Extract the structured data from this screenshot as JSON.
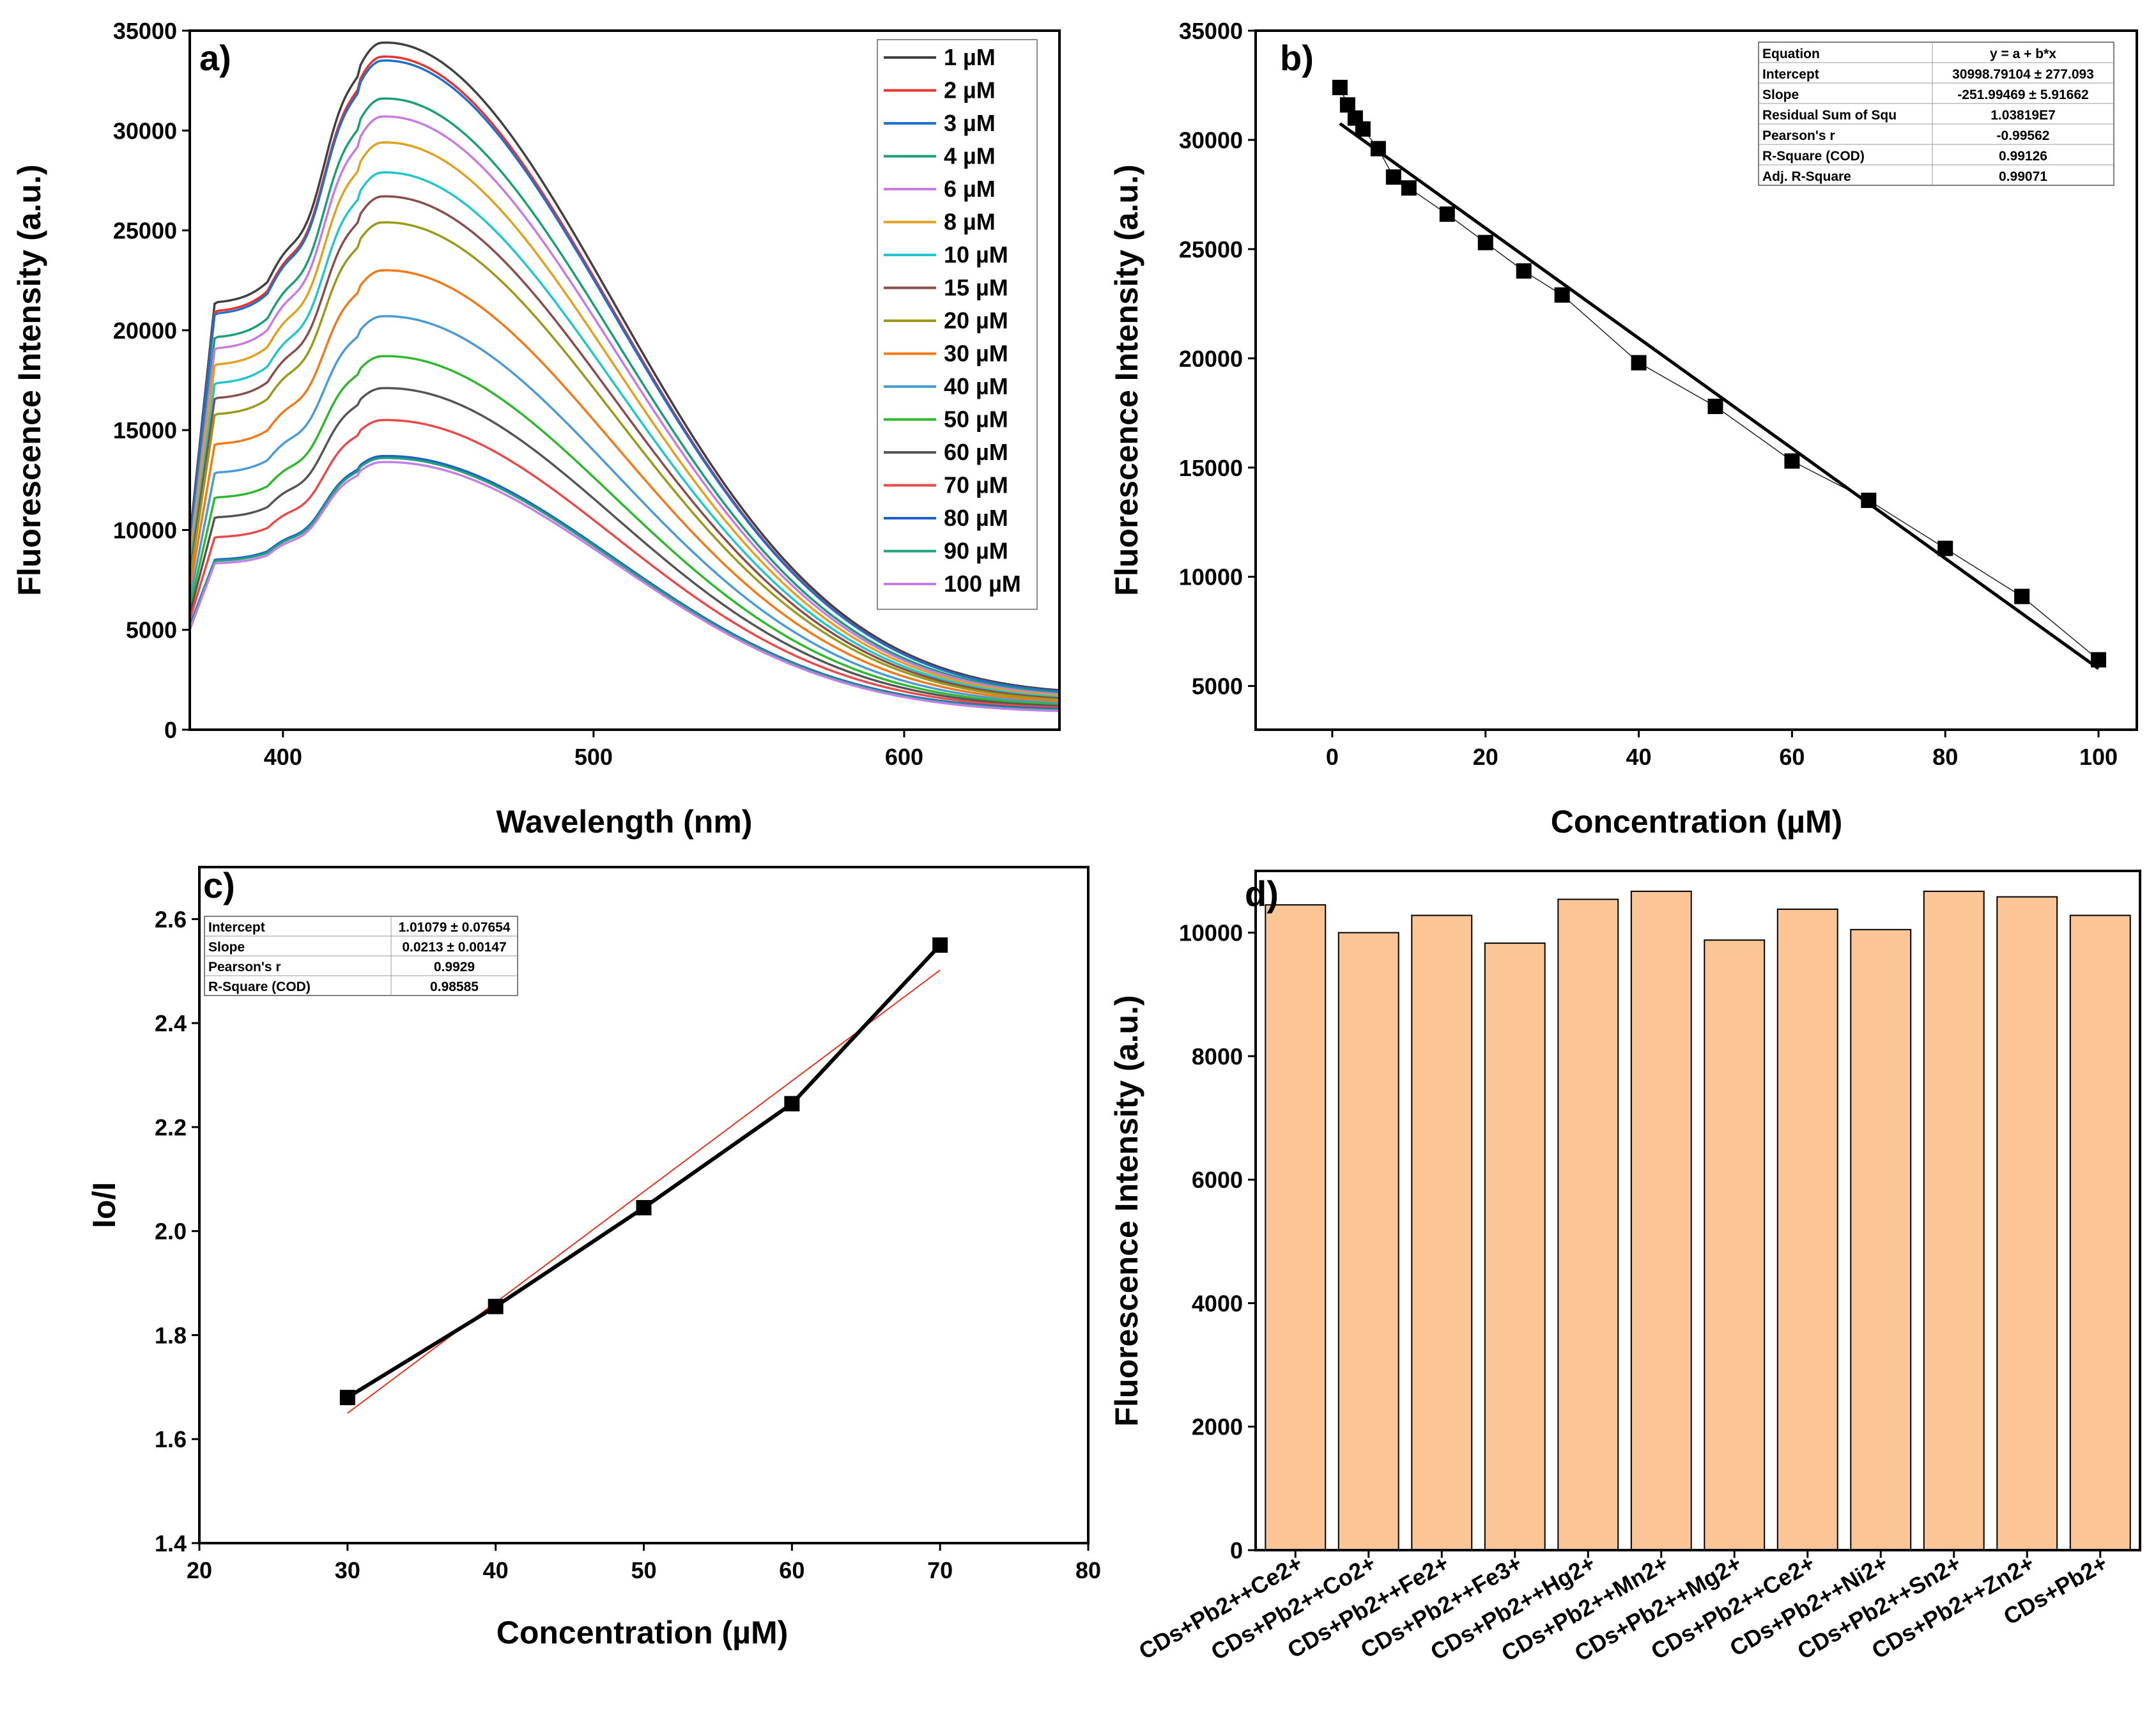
{
  "chart_data": [
    {
      "panel": "a)",
      "type": "line",
      "xlabel": "Wavelength (nm)",
      "ylabel": "Fluorescence Intensity (a.u.)",
      "xlim": [
        370,
        650
      ],
      "ylim": [
        0,
        35000
      ],
      "xticks": [
        400,
        500,
        600
      ],
      "yticks": [
        0,
        5000,
        10000,
        15000,
        20000,
        25000,
        30000,
        35000
      ],
      "peak_wavelength": 432,
      "series": [
        {
          "name": "1 µM",
          "color": "#404040",
          "peak": 34400,
          "start": 9600,
          "end": 1500
        },
        {
          "name": "2 µM",
          "color": "#e8322e",
          "peak": 33700,
          "start": 9400,
          "end": 1450
        },
        {
          "name": "3 µM",
          "color": "#1f6fd1",
          "peak": 33500,
          "start": 9300,
          "end": 1450
        },
        {
          "name": "4 µM",
          "color": "#1a9e75",
          "peak": 31600,
          "start": 8900,
          "end": 1400
        },
        {
          "name": "6 µM",
          "color": "#c77be0",
          "peak": 30700,
          "start": 8700,
          "end": 1350
        },
        {
          "name": "8 µM",
          "color": "#e0a020",
          "peak": 29400,
          "start": 8400,
          "end": 1300
        },
        {
          "name": "10 µM",
          "color": "#1fc6cc",
          "peak": 27900,
          "start": 8100,
          "end": 1250
        },
        {
          "name": "15 µM",
          "color": "#8b4c4c",
          "peak": 26700,
          "start": 7800,
          "end": 1200
        },
        {
          "name": "20 µM",
          "color": "#9a9a1a",
          "peak": 25400,
          "start": 7500,
          "end": 1150
        },
        {
          "name": "30 µM",
          "color": "#f07a1a",
          "peak": 23000,
          "start": 7000,
          "end": 1100
        },
        {
          "name": "40 µM",
          "color": "#4a9ad4",
          "peak": 20700,
          "start": 6500,
          "end": 1050
        },
        {
          "name": "50 µM",
          "color": "#2eb82e",
          "peak": 18700,
          "start": 6100,
          "end": 1000
        },
        {
          "name": "60 µM",
          "color": "#555555",
          "peak": 17100,
          "start": 5800,
          "end": 950
        },
        {
          "name": "70 µM",
          "color": "#e84a4a",
          "peak": 15500,
          "start": 5500,
          "end": 900
        },
        {
          "name": "80 µM",
          "color": "#1f5fc8",
          "peak": 13700,
          "start": 5200,
          "end": 850
        },
        {
          "name": "90 µM",
          "color": "#22a080",
          "peak": 13600,
          "start": 5100,
          "end": 800
        },
        {
          "name": "100 µM",
          "color": "#c080e8",
          "peak": 13400,
          "start": 5000,
          "end": 750
        }
      ]
    },
    {
      "panel": "b)",
      "type": "scatter",
      "xlabel": "Concentration (µM)",
      "ylabel": "Fluorescence Intensity (a.u.)",
      "xlim": [
        -10,
        105
      ],
      "ylim": [
        3000,
        35000
      ],
      "xticks": [
        0,
        20,
        40,
        60,
        80,
        100
      ],
      "yticks": [
        5000,
        10000,
        15000,
        20000,
        25000,
        30000,
        35000
      ],
      "x": [
        1,
        2,
        3,
        4,
        6,
        8,
        10,
        15,
        20,
        25,
        30,
        40,
        50,
        60,
        70,
        80,
        90,
        100
      ],
      "y": [
        32400,
        31600,
        31000,
        30500,
        29600,
        28300,
        27800,
        26600,
        25300,
        24000,
        22900,
        19800,
        17800,
        15300,
        13500,
        11300,
        9100,
        6200
      ],
      "fit": {
        "intercept": 30998.79104,
        "slope": -251.99469,
        "x_range": [
          1,
          100
        ]
      },
      "table": [
        [
          "Equation",
          "y = a + b*x"
        ],
        [
          "Intercept",
          "30998.79104 ± 277.093"
        ],
        [
          "Slope",
          "-251.99469 ± 5.91662"
        ],
        [
          "Residual Sum of Squ",
          "1.03819E7"
        ],
        [
          "Pearson's r",
          "-0.99562"
        ],
        [
          "R-Square (COD)",
          "0.99126"
        ],
        [
          "Adj. R-Square",
          "0.99071"
        ]
      ]
    },
    {
      "panel": "c)",
      "type": "scatter",
      "xlabel": "Concentration (µM)",
      "ylabel": "Io/I",
      "xlim": [
        20,
        80
      ],
      "ylim": [
        1.4,
        2.7
      ],
      "xticks": [
        20,
        30,
        40,
        50,
        60,
        70,
        80
      ],
      "yticks": [
        1.4,
        1.6,
        1.8,
        2.0,
        2.2,
        2.4,
        2.6
      ],
      "x": [
        30,
        40,
        50,
        60,
        70
      ],
      "y": [
        1.68,
        1.855,
        2.045,
        2.245,
        2.55
      ],
      "fit": {
        "intercept": 1.01079,
        "slope": 0.0213,
        "x_range": [
          30,
          70
        ]
      },
      "table": [
        [
          "Intercept",
          "1.01079 ± 0.07654"
        ],
        [
          "Slope",
          "0.0213 ± 0.00147"
        ],
        [
          "Pearson's r",
          "0.9929"
        ],
        [
          "R-Square (COD)",
          "0.98585"
        ]
      ]
    },
    {
      "panel": "d)",
      "type": "bar",
      "xlabel": "",
      "ylabel": "Fluorescence Intensity (a.u.)",
      "ylim": [
        0,
        11000
      ],
      "yticks": [
        0,
        2000,
        4000,
        6000,
        8000,
        10000
      ],
      "bar_color": "#fbc596",
      "categories": [
        "CDs+Pb2++Ce2+",
        "CDs+Pb2++Co2+",
        "CDs+Pb2++Fe2+",
        "CDs+Pb2++Fe3+",
        "CDs+Pb2++Hg2+",
        "CDs+Pb2++Mn2+",
        "CDs+Pb2++Mg2+",
        "CDs+Pb2++Ce2+",
        "CDs+Pb2++Ni2+",
        "CDs+Pb2++Sn2+",
        "CDs+Pb2++Zn2+",
        "CDs+Pb2+"
      ],
      "values": [
        10450,
        10000,
        10280,
        9830,
        10540,
        10670,
        9880,
        10380,
        10050,
        10670,
        10580,
        10280
      ]
    }
  ]
}
